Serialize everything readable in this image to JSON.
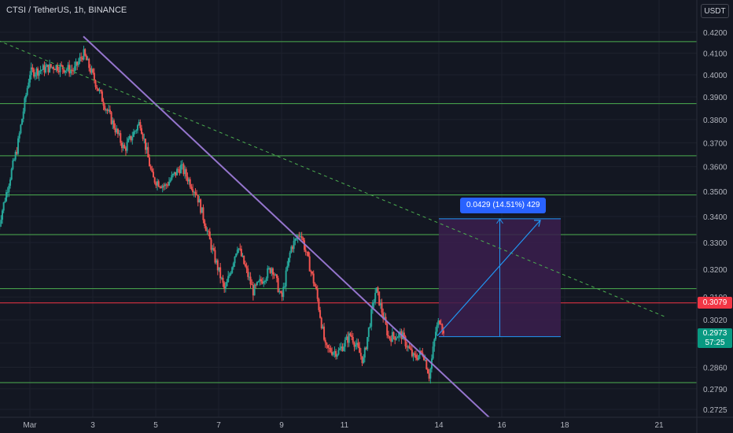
{
  "header": {
    "title": "CTSI / TetherUS, 1h, BINANCE",
    "currency": "USDT"
  },
  "price_tags": {
    "red_value": "0.3079",
    "green_value": "0.2973",
    "green_countdown": "57:25"
  },
  "measure": {
    "label": "0.0429 (14.51%) 429",
    "from_price": 0.2962,
    "to_price": 0.3391,
    "from_date": "Mar 14 ~00:00",
    "to_date": "Mar 17 ~20:00"
  },
  "colors": {
    "background": "#131722",
    "up": "#26a69a",
    "down": "#ef5350",
    "support_line": "#4caf50",
    "trendline": "#9575cd",
    "current_price_line": "#f23645",
    "measure_fill": "#3b1f4e",
    "measure_accent": "#2962ff"
  },
  "chart_data": {
    "type": "candlestick",
    "symbol": "CTSI / TetherUS",
    "interval": "1h",
    "exchange": "BINANCE",
    "x_axis": {
      "ticks": [
        {
          "label": "Mar",
          "day": 1
        },
        {
          "label": "3",
          "day": 3
        },
        {
          "label": "5",
          "day": 5
        },
        {
          "label": "7",
          "day": 7
        },
        {
          "label": "9",
          "day": 9
        },
        {
          "label": "11",
          "day": 11
        },
        {
          "label": "14",
          "day": 14
        },
        {
          "label": "16",
          "day": 16
        },
        {
          "label": "18",
          "day": 18
        },
        {
          "label": "21",
          "day": 21
        }
      ]
    },
    "y_axis": {
      "scale": "log",
      "range": [
        0.271,
        0.423
      ],
      "ticks": [
        "0.4200",
        "0.4100",
        "0.4000",
        "0.3900",
        "0.3800",
        "0.3700",
        "0.3600",
        "0.3500",
        "0.3400",
        "0.3300",
        "0.3200",
        "0.3100",
        "0.3020",
        "0.2940",
        "0.2860",
        "0.2790",
        "0.2725"
      ]
    },
    "horizontal_levels": [
      0.4155,
      0.387,
      0.3645,
      0.3485,
      0.333,
      0.313,
      0.281
    ],
    "current_price_line": 0.3079,
    "last_price": 0.2973,
    "trendline_solid": {
      "start": {
        "day": 2.7,
        "price": 0.418
      },
      "end": {
        "day": 15.6,
        "price": 0.27
      }
    },
    "trendline_dashed": {
      "start": {
        "day": 0.0,
        "price": 0.416
      },
      "end": {
        "day": 21.2,
        "price": 0.303
      }
    },
    "anchors": [
      {
        "day": 0.0,
        "price": 0.336
      },
      {
        "day": 0.6,
        "price": 0.368
      },
      {
        "day": 1.0,
        "price": 0.401
      },
      {
        "day": 1.8,
        "price": 0.404
      },
      {
        "day": 2.4,
        "price": 0.402
      },
      {
        "day": 2.7,
        "price": 0.41
      },
      {
        "day": 3.3,
        "price": 0.389
      },
      {
        "day": 4.0,
        "price": 0.367
      },
      {
        "day": 4.5,
        "price": 0.379
      },
      {
        "day": 4.9,
        "price": 0.355
      },
      {
        "day": 5.3,
        "price": 0.352
      },
      {
        "day": 5.8,
        "price": 0.36
      },
      {
        "day": 6.3,
        "price": 0.349
      },
      {
        "day": 6.8,
        "price": 0.327
      },
      {
        "day": 7.2,
        "price": 0.312
      },
      {
        "day": 7.6,
        "price": 0.329
      },
      {
        "day": 8.1,
        "price": 0.312
      },
      {
        "day": 8.7,
        "price": 0.321
      },
      {
        "day": 9.0,
        "price": 0.309
      },
      {
        "day": 9.3,
        "price": 0.328
      },
      {
        "day": 9.6,
        "price": 0.334
      },
      {
        "day": 10.1,
        "price": 0.312
      },
      {
        "day": 10.4,
        "price": 0.292
      },
      {
        "day": 10.8,
        "price": 0.291
      },
      {
        "day": 11.2,
        "price": 0.297
      },
      {
        "day": 11.6,
        "price": 0.288
      },
      {
        "day": 12.0,
        "price": 0.313
      },
      {
        "day": 12.4,
        "price": 0.296
      },
      {
        "day": 12.8,
        "price": 0.297
      },
      {
        "day": 13.2,
        "price": 0.289
      },
      {
        "day": 13.5,
        "price": 0.291
      },
      {
        "day": 13.7,
        "price": 0.283
      },
      {
        "day": 13.9,
        "price": 0.298
      },
      {
        "day": 14.05,
        "price": 0.303
      },
      {
        "day": 14.15,
        "price": 0.2973
      }
    ]
  }
}
